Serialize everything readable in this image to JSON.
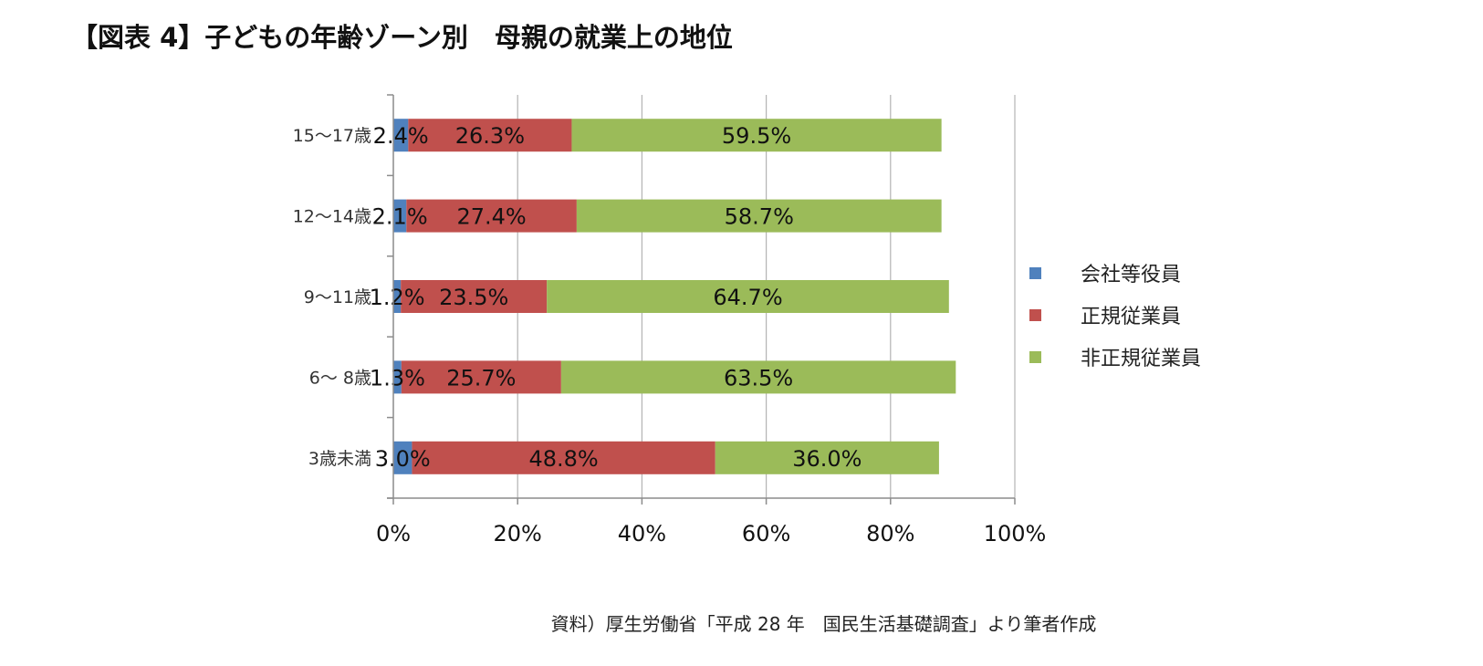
{
  "title": "【図表 4】子どもの年齢ゾーン別　母親の就業上の地位",
  "source": "資料）厚生労働省「平成 28 年　国民生活基礎調査」より筆者作成",
  "chart_data": {
    "type": "bar",
    "orientation": "horizontal",
    "stacked": "percent",
    "categories": [
      "15～17歳",
      "12～14歳",
      "9～11歳",
      "6～ 8歳",
      "3歳未満"
    ],
    "series": [
      {
        "name": "会社等役員",
        "color": "#4f81bd",
        "values": [
          2.4,
          2.1,
          1.2,
          1.3,
          3.0
        ],
        "labels": [
          "2.4%",
          "2.1%",
          "1.2%",
          "1.3%",
          "3.0%"
        ]
      },
      {
        "name": "正規従業員",
        "color": "#c0504d",
        "values": [
          26.3,
          27.4,
          23.5,
          25.7,
          48.8
        ],
        "labels": [
          "26.3%",
          "27.4%",
          "23.5%",
          "25.7%",
          "48.8%"
        ]
      },
      {
        "name": "非正規従業員",
        "color": "#9bbb59",
        "values": [
          59.5,
          58.7,
          64.7,
          63.5,
          36.0
        ],
        "labels": [
          "59.5%",
          "58.7%",
          "64.7%",
          "63.5%",
          "36.0%"
        ]
      }
    ],
    "xlim": [
      0,
      100
    ],
    "xticks": [
      0,
      20,
      40,
      60,
      80,
      100
    ],
    "xtick_labels": [
      "0%",
      "20%",
      "40%",
      "60%",
      "80%",
      "100%"
    ],
    "grid": true,
    "legend": "right"
  }
}
